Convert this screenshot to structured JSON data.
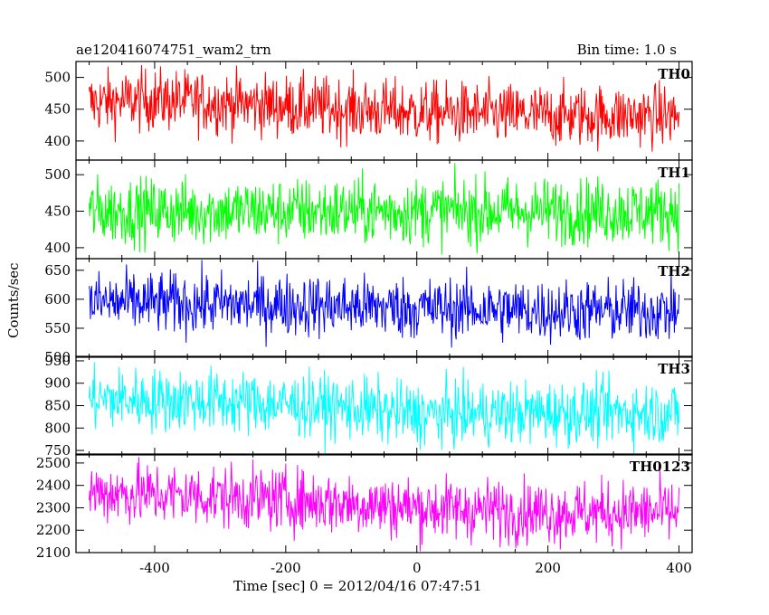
{
  "header": {
    "title": "ae120416074751_wam2_trn",
    "bin_time": "Bin time: 1.0 s"
  },
  "chart_data": {
    "type": "line",
    "title": "ae120416074751_wam2_trn",
    "subtitle": "Bin time: 1.0 s",
    "xlabel": "Time [sec] 0 = 2012/04/16 07:47:51",
    "ylabel": "Counts/sec",
    "xlim": [
      -520,
      420
    ],
    "x_ticks": [
      -400,
      -200,
      0,
      200,
      400
    ],
    "x_range": [
      -500,
      400
    ],
    "panels": [
      {
        "name": "TH0",
        "color": "#ff0000",
        "ylim": [
          370,
          525
        ],
        "y_ticks": [
          400,
          450,
          500
        ],
        "approx_mean": 450,
        "approx_range": [
          380,
          525
        ],
        "trend": [
          [
            -500,
            460
          ],
          [
            -400,
            465
          ],
          [
            -200,
            455
          ],
          [
            0,
            445
          ],
          [
            200,
            440
          ],
          [
            400,
            440
          ]
        ]
      },
      {
        "name": "TH1",
        "color": "#00ff00",
        "ylim": [
          385,
          520
        ],
        "y_ticks": [
          400,
          450,
          500
        ],
        "approx_mean": 450,
        "approx_range": [
          385,
          520
        ],
        "trend": [
          [
            -500,
            450
          ],
          [
            -200,
            450
          ],
          [
            0,
            450
          ],
          [
            200,
            450
          ],
          [
            400,
            450
          ]
        ]
      },
      {
        "name": "TH2",
        "color": "#0000ff",
        "ylim": [
          500,
          670
        ],
        "y_ticks": [
          500,
          550,
          600,
          650
        ],
        "approx_mean": 585,
        "approx_range": [
          505,
          665
        ],
        "trend": [
          [
            -500,
            595
          ],
          [
            -200,
            590
          ],
          [
            0,
            585
          ],
          [
            200,
            580
          ],
          [
            400,
            580
          ]
        ]
      },
      {
        "name": "TH3",
        "color": "#00ffff",
        "ylim": [
          740,
          960
        ],
        "y_ticks": [
          750,
          800,
          850,
          900,
          950
        ],
        "approx_mean": 845,
        "approx_range": [
          750,
          960
        ],
        "trend": [
          [
            -500,
            865
          ],
          [
            -300,
            860
          ],
          [
            -100,
            845
          ],
          [
            0,
            830
          ],
          [
            200,
            835
          ],
          [
            400,
            835
          ]
        ]
      },
      {
        "name": "TH0123",
        "color": "#ff00ff",
        "ylim": [
          2100,
          2540
        ],
        "y_ticks": [
          2100,
          2200,
          2300,
          2400,
          2500
        ],
        "approx_mean": 2310,
        "approx_range": [
          2110,
          2530
        ],
        "trend": [
          [
            -500,
            2370
          ],
          [
            -300,
            2350
          ],
          [
            -100,
            2320
          ],
          [
            0,
            2300
          ],
          [
            200,
            2280
          ],
          [
            400,
            2280
          ]
        ]
      }
    ]
  }
}
